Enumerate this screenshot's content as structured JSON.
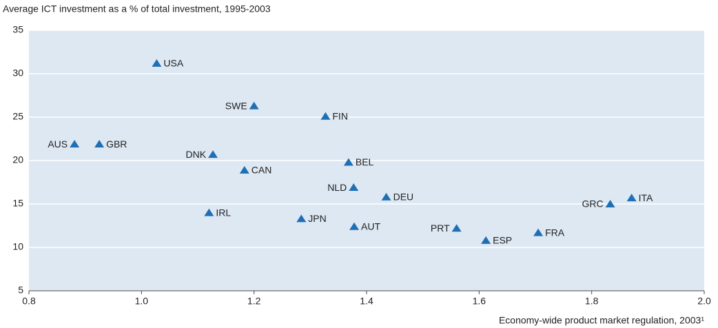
{
  "chart_data": {
    "type": "scatter",
    "title": "Average ICT investment as a % of total investment, 1995-2003",
    "x_label": "Economy-wide product market regulation, 2003¹",
    "labels": [
      "USA",
      "SWE",
      "FIN",
      "AUS",
      "GBR",
      "DNK",
      "CAN",
      "BEL",
      "NLD",
      "DEU",
      "IRL",
      "JPN",
      "AUT",
      "PRT",
      "ESP",
      "FRA",
      "GRC",
      "ITA"
    ],
    "x": [
      1.027,
      1.2,
      1.327,
      0.881,
      0.925,
      1.127,
      1.183,
      1.368,
      1.377,
      1.435,
      1.12,
      1.284,
      1.378,
      1.56,
      1.612,
      1.705,
      1.833,
      1.871
    ],
    "values": [
      31.2,
      26.3,
      25.1,
      21.9,
      21.9,
      20.7,
      18.9,
      19.8,
      16.9,
      15.8,
      14.0,
      13.3,
      12.4,
      12.2,
      10.8,
      11.7,
      15.0,
      15.7
    ],
    "color": "#1f6fb5",
    "xlim": [
      0.8,
      2.0
    ],
    "xticks": [
      0.8,
      {
        "value": 1.0,
        "label": "1.0"
      },
      1.2,
      1.4,
      1.6,
      1.8,
      {
        "value": 2.0,
        "label": "2.0"
      }
    ],
    "ylim": [
      5,
      35
    ],
    "yticks": [
      5,
      10,
      15,
      20,
      25,
      30,
      35
    ],
    "grid": true
  }
}
